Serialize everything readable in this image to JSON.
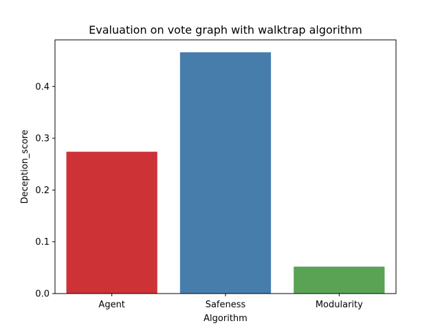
{
  "chart_data": {
    "type": "bar",
    "title": "Evaluation on vote graph with walktrap algorithm",
    "xlabel": "Algorithm",
    "ylabel": "Deception_score",
    "categories": [
      "Agent",
      "Safeness",
      "Modularity"
    ],
    "values": [
      0.274,
      0.466,
      0.052
    ],
    "colors": [
      "#cd3237",
      "#477dab",
      "#5aa355"
    ],
    "ylim": [
      0,
      0.49
    ],
    "yticks": [
      0.0,
      0.1,
      0.2,
      0.3,
      0.4
    ],
    "ytick_labels": [
      "0.0",
      "0.1",
      "0.2",
      "0.3",
      "0.4"
    ],
    "grid": false,
    "legend": "none"
  }
}
